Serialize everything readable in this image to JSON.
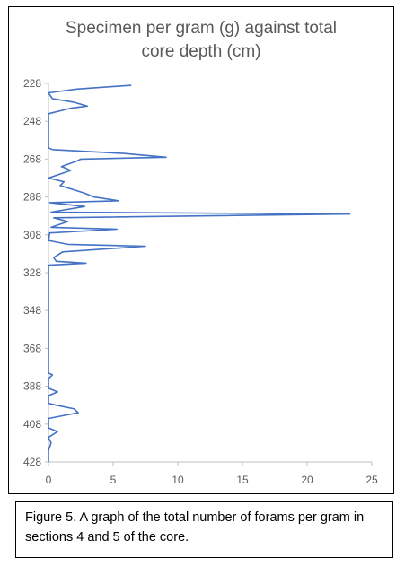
{
  "chart_data": {
    "type": "line",
    "title_line1": "Specimen per gram (g) against total",
    "title_line2": "core depth (cm)",
    "xlabel": "",
    "ylabel": "",
    "xlim": [
      0,
      25
    ],
    "ylim": [
      228,
      428
    ],
    "y_inverted": true,
    "x_ticks": [
      0,
      5,
      10,
      15,
      20,
      25
    ],
    "y_ticks": [
      228,
      248,
      268,
      288,
      308,
      328,
      348,
      368,
      388,
      408,
      428
    ],
    "grid": false,
    "legend": "none",
    "line_color": "#4472C4",
    "series": [
      {
        "points": [
          [
            6.4,
            229
          ],
          [
            2.2,
            231
          ],
          [
            0,
            233
          ],
          [
            0.3,
            236
          ],
          [
            2.0,
            238
          ],
          [
            3.0,
            240
          ],
          [
            1.8,
            241
          ],
          [
            0,
            244
          ],
          [
            0,
            246
          ],
          [
            0,
            260
          ],
          [
            0,
            262
          ],
          [
            0.3,
            263
          ],
          [
            5.8,
            265
          ],
          [
            9.1,
            267
          ],
          [
            2.5,
            268
          ],
          [
            2.2,
            269
          ],
          [
            1.0,
            272
          ],
          [
            1.4,
            273
          ],
          [
            1.7,
            274
          ],
          [
            0,
            278
          ],
          [
            1.2,
            280
          ],
          [
            0.9,
            282
          ],
          [
            2.8,
            286
          ],
          [
            3.5,
            288
          ],
          [
            5.4,
            290
          ],
          [
            0.1,
            291
          ],
          [
            2.8,
            293
          ],
          [
            0.2,
            296
          ],
          [
            23.3,
            297
          ],
          [
            0.4,
            299
          ],
          [
            1.5,
            301
          ],
          [
            0.2,
            304
          ],
          [
            5.3,
            305
          ],
          [
            0.1,
            307
          ],
          [
            0,
            311
          ],
          [
            1.5,
            313
          ],
          [
            7.5,
            314
          ],
          [
            1.1,
            317
          ],
          [
            0.4,
            320
          ],
          [
            0.6,
            322
          ],
          [
            2.9,
            323
          ],
          [
            0,
            324
          ],
          [
            0,
            327
          ],
          [
            0,
            381
          ],
          [
            0.3,
            382
          ],
          [
            0,
            384
          ],
          [
            0,
            389
          ],
          [
            0.7,
            391
          ],
          [
            0,
            393
          ],
          [
            0,
            397
          ],
          [
            0.6,
            398
          ],
          [
            2.0,
            400
          ],
          [
            2.3,
            402
          ],
          [
            0,
            405
          ],
          [
            0,
            410
          ],
          [
            0.7,
            412
          ],
          [
            0,
            415
          ],
          [
            0.2,
            418
          ],
          [
            0,
            422
          ],
          [
            0,
            428
          ]
        ]
      }
    ]
  },
  "caption": {
    "text": "Figure 5. A graph of the total number of forams per gram in sections 4 and 5 of the core."
  }
}
